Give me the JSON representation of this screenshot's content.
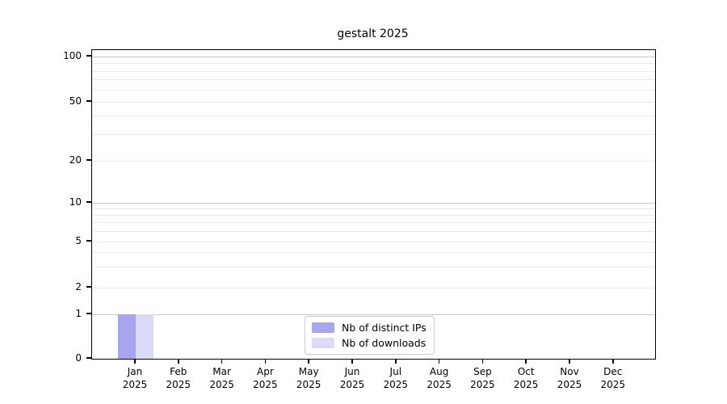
{
  "chart_data": {
    "type": "bar",
    "title": "gestalt 2025",
    "categories": [
      "Jan",
      "Feb",
      "Mar",
      "Apr",
      "May",
      "Jun",
      "Jul",
      "Aug",
      "Sep",
      "Oct",
      "Nov",
      "Dec"
    ],
    "category_year_label": "2025",
    "series": [
      {
        "name": "Nb of distinct IPs",
        "color": "#a6a6ef",
        "values": [
          1,
          0,
          0,
          0,
          0,
          0,
          0,
          0,
          0,
          0,
          0,
          0
        ]
      },
      {
        "name": "Nb of downloads",
        "color": "#dbdbf8",
        "values": [
          1,
          0,
          0,
          0,
          0,
          0,
          0,
          0,
          0,
          0,
          0,
          0
        ]
      }
    ],
    "yaxis": {
      "scale": "symlog",
      "ticks": [
        0,
        1,
        2,
        5,
        10,
        20,
        50,
        100
      ],
      "major_gridlines": [
        1,
        10,
        100
      ],
      "minor_gridlines": [
        2,
        3,
        4,
        5,
        6,
        7,
        8,
        9,
        20,
        30,
        40,
        50,
        60,
        70,
        80,
        90
      ],
      "range": [
        0,
        110
      ]
    },
    "legend": {
      "position": "lower center",
      "entries": [
        "Nb of distinct IPs",
        "Nb of downloads"
      ]
    },
    "grid": "horizontal",
    "colors": {
      "major_grid": "#c7c7c7",
      "minor_grid": "#ebebeb",
      "spine": "#000000",
      "text": "#000000",
      "legend_border": "#cccccc",
      "background": "#ffffff"
    }
  }
}
